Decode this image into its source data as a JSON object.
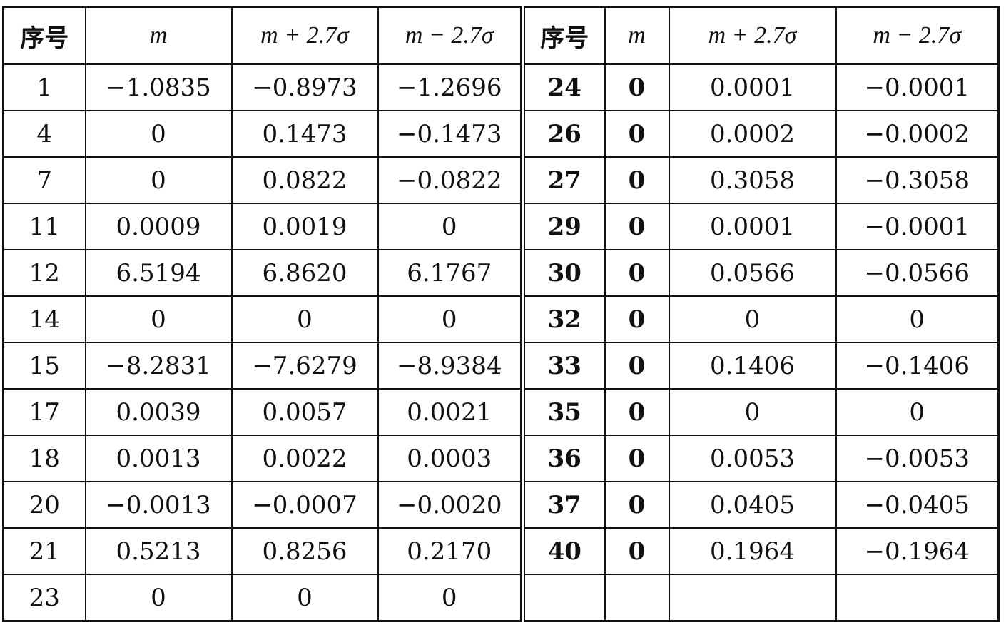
{
  "table": {
    "headers": [
      "序号",
      "m",
      "m + 2.7σ",
      "m − 2.7σ",
      "序号",
      "m",
      "m + 2.7σ",
      "m − 2.7σ"
    ],
    "left_rows": [
      [
        "1",
        "−1.0835",
        "−0.8973",
        "−1.2696"
      ],
      [
        "4",
        "0",
        "0.1473",
        "−0.1473"
      ],
      [
        "7",
        "0",
        "0.0822",
        "−0.0822"
      ],
      [
        "11",
        "0.0009",
        "0.0019",
        "0"
      ],
      [
        "12",
        "6.5194",
        "6.8620",
        "6.1767"
      ],
      [
        "14",
        "0",
        "0",
        "0"
      ],
      [
        "15",
        "−8.2831",
        "−7.6279",
        "−8.9384"
      ],
      [
        "17",
        "0.0039",
        "0.0057",
        "0.0021"
      ],
      [
        "18",
        "0.0013",
        "0.0022",
        "0.0003"
      ],
      [
        "20",
        "−0.0013",
        "−0.0007",
        "−0.0020"
      ],
      [
        "21",
        "0.5213",
        "0.8256",
        "0.2170"
      ],
      [
        "23",
        "0",
        "0",
        "0"
      ]
    ],
    "right_rows": [
      [
        "24",
        "0",
        "0.0001",
        "−0.0001"
      ],
      [
        "26",
        "0",
        "0.0002",
        "−0.0002"
      ],
      [
        "27",
        "0",
        "0.3058",
        "−0.3058"
      ],
      [
        "29",
        "0",
        "0.0001",
        "−0.0001"
      ],
      [
        "30",
        "0",
        "0.0566",
        "−0.0566"
      ],
      [
        "32",
        "0",
        "0",
        "0"
      ],
      [
        "33",
        "0",
        "0.1406",
        "−0.1406"
      ],
      [
        "35",
        "0",
        "0",
        "0"
      ],
      [
        "36",
        "0",
        "0.0053",
        "−0.0053"
      ],
      [
        "37",
        "0",
        "0.0405",
        "−0.0405"
      ],
      [
        "40",
        "0",
        "0.1964",
        "−0.1964"
      ],
      [
        "",
        "",
        "",
        ""
      ]
    ]
  }
}
